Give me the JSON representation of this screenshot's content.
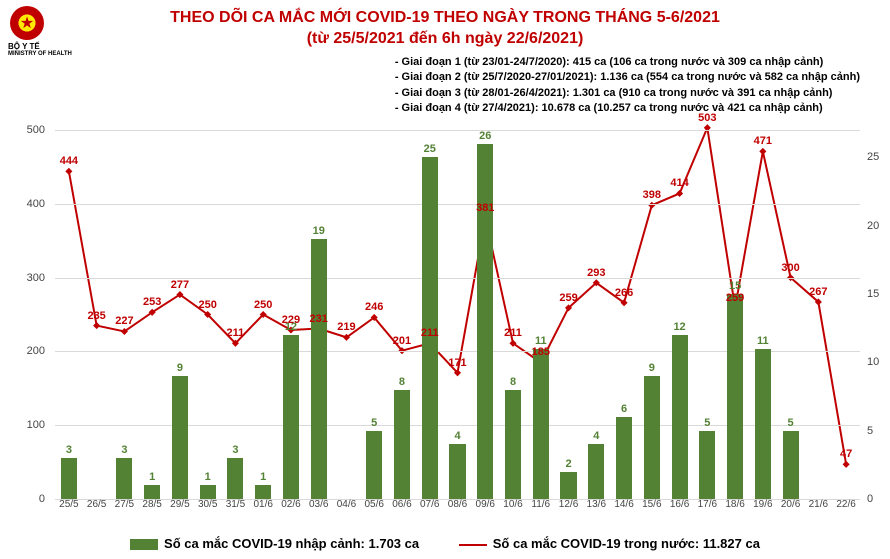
{
  "title": {
    "line1": "THEO DÕI CA MẮC MỚI COVID-19 THEO NGÀY TRONG THÁNG 5-6/2021",
    "line2": "(từ 25/5/2021 đến 6h ngày 22/6/2021)",
    "color": "#c00000",
    "fontsize": 16
  },
  "agency_top": "BỘ Y TẾ",
  "agency_bottom": "MINISTRY OF HEALTH",
  "phases": [
    "- Giai đoạn 1 (từ 23/01-24/7/2020): 415 ca (106 ca trong nước và 309 ca nhập cảnh)",
    "- Giai đoạn 2 (từ 25/7/2020-27/01/2021): 1.136 ca (554 ca trong nước và 582 ca nhập cảnh)",
    "- Giai đoạn 3 (từ 28/01-26/4/2021): 1.301 ca (910 ca trong nước và 391 ca nhập cảnh)",
    "- Giai đoạn 4 (từ 27/4/2021): 10.678 ca (10.257 ca trong nước và 421 ca nhập cảnh)"
  ],
  "chart": {
    "type": "bar+line",
    "categories": [
      "25/5",
      "26/5",
      "27/5",
      "28/5",
      "29/5",
      "30/5",
      "31/5",
      "01/6",
      "02/6",
      "03/6",
      "04/6",
      "05/6",
      "06/6",
      "07/6",
      "08/6",
      "09/6",
      "10/6",
      "11/6",
      "12/6",
      "13/6",
      "14/6",
      "15/6",
      "16/6",
      "17/6",
      "18/6",
      "19/6",
      "20/6",
      "21/6",
      "22/6"
    ],
    "bars": {
      "values": [
        3,
        null,
        3,
        1,
        9,
        1,
        3,
        1,
        12,
        19,
        null,
        5,
        8,
        25,
        4,
        26,
        8,
        11,
        2,
        4,
        6,
        9,
        12,
        5,
        15,
        11,
        5,
        null,
        null
      ],
      "color": "#548235",
      "label_color": "#548235",
      "bar_width": 0.58,
      "label_fontsize": 11,
      "axis": "right"
    },
    "line": {
      "values": [
        444,
        235,
        227,
        253,
        277,
        250,
        211,
        250,
        229,
        231,
        219,
        246,
        201,
        211,
        171,
        381,
        211,
        185,
        259,
        293,
        266,
        398,
        414,
        503,
        259,
        471,
        300,
        267,
        47
      ],
      "color": "#c00000",
      "marker": "diamond",
      "marker_size": 5,
      "line_width": 2,
      "label_color": "#c00000",
      "label_fontsize": 11,
      "axis": "left"
    },
    "y_left": {
      "min": 0,
      "max": 500,
      "step": 100,
      "ticks": [
        0,
        100,
        200,
        300,
        400,
        500
      ]
    },
    "y_right": {
      "min": 0,
      "max": 27,
      "step": 5,
      "ticks": [
        0,
        5,
        10,
        15,
        20,
        25
      ]
    },
    "background_color": "#ffffff",
    "grid_color": "#d9d9d9"
  },
  "legend": {
    "bar_label": "Số ca mắc COVID-19 nhập cảnh: 1.703 ca",
    "line_label": "Số ca mắc COVID-19 trong nước: 11.827 ca"
  }
}
